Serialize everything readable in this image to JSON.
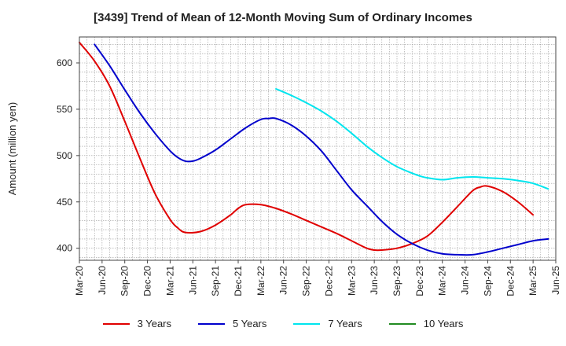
{
  "chart_data": {
    "type": "line",
    "title": "[3439]  Trend of Mean of 12-Month Moving Sum of Ordinary Incomes",
    "xlabel": "",
    "ylabel": "Amount (million yen)",
    "ylim": [
      387,
      628
    ],
    "yticks": [
      400,
      450,
      500,
      550,
      600
    ],
    "x_range": [
      0,
      63
    ],
    "categories": [
      "Mar-20",
      "Jun-20",
      "Sep-20",
      "Dec-20",
      "Mar-21",
      "Jun-21",
      "Sep-21",
      "Dec-21",
      "Mar-22",
      "Jun-22",
      "Sep-22",
      "Dec-22",
      "Mar-23",
      "Jun-23",
      "Sep-23",
      "Dec-23",
      "Mar-24",
      "Jun-24",
      "Sep-24",
      "Dec-24",
      "Mar-25",
      "Jun-25"
    ],
    "grid": true,
    "legend_position": "bottom",
    "series": [
      {
        "name": "3 Years",
        "color": "#e00000",
        "x": [
          0,
          2,
          4,
          6,
          8,
          10,
          12,
          13,
          14,
          16,
          18,
          20,
          21,
          22,
          24,
          26,
          28,
          30,
          32,
          34,
          36,
          38,
          39,
          40,
          42,
          44,
          46,
          48,
          50,
          52,
          53,
          54,
          56,
          58,
          60
        ],
        "values": [
          622,
          602,
          575,
          537,
          497,
          459,
          431,
          422,
          417,
          418,
          425,
          436,
          443,
          447,
          447,
          443,
          437,
          430,
          423,
          416,
          408,
          400,
          398,
          398,
          400,
          405,
          413,
          428,
          445,
          462,
          466,
          467,
          461,
          450,
          436
        ]
      },
      {
        "name": "5 Years",
        "color": "#0000cc",
        "x": [
          2,
          4,
          6,
          8,
          10,
          12,
          13,
          14,
          15,
          16,
          18,
          20,
          22,
          24,
          25,
          26,
          28,
          30,
          32,
          34,
          36,
          38,
          40,
          42,
          44,
          46,
          48,
          50,
          52,
          54,
          56,
          58,
          60,
          62
        ],
        "values": [
          620,
          597,
          571,
          546,
          524,
          505,
          498,
          494,
          494,
          497,
          506,
          518,
          530,
          539,
          540,
          540,
          533,
          521,
          505,
          484,
          463,
          446,
          429,
          415,
          405,
          398,
          394,
          393,
          393,
          396,
          400,
          404,
          408,
          410
        ]
      },
      {
        "name": "7 Years",
        "color": "#00e5ee",
        "x": [
          26,
          28,
          30,
          32,
          34,
          36,
          38,
          40,
          42,
          44,
          45,
          46,
          48,
          50,
          52,
          54,
          56,
          58,
          60,
          62
        ],
        "values": [
          572,
          565,
          557,
          548,
          537,
          524,
          510,
          498,
          488,
          481,
          478,
          476,
          474,
          476,
          477,
          476,
          475,
          473,
          470,
          464
        ]
      },
      {
        "name": "10 Years",
        "color": "#228b22",
        "x": [],
        "values": []
      }
    ]
  }
}
